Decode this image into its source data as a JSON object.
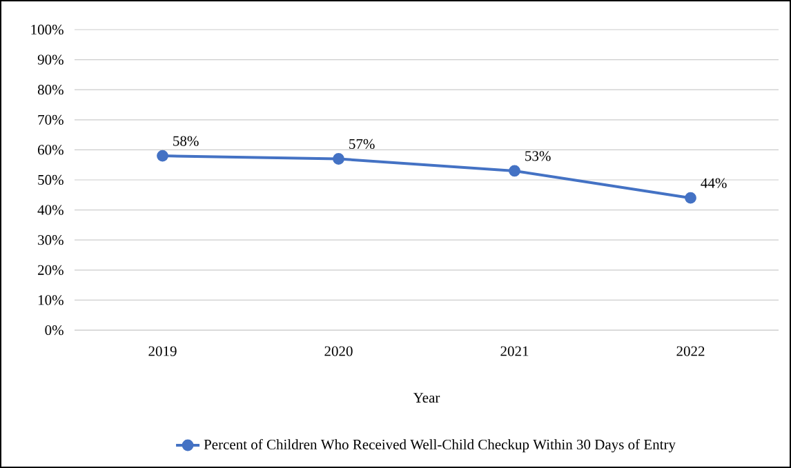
{
  "chart_data": {
    "type": "line",
    "xlabel": "Year",
    "categories": [
      "2019",
      "2020",
      "2021",
      "2022"
    ],
    "series": [
      {
        "name": "Percent of Children Who Received Well-Child Checkup Within 30 Days of Entry",
        "color": "#4472c4",
        "values": [
          58,
          57,
          53,
          44
        ],
        "value_labels": [
          "58%",
          "57%",
          "53%",
          "44%"
        ]
      }
    ],
    "ylim": [
      0,
      100
    ],
    "yticks": [
      {
        "value": 0,
        "label": "0%"
      },
      {
        "value": 10,
        "label": "10%"
      },
      {
        "value": 20,
        "label": "20%"
      },
      {
        "value": 30,
        "label": "30%"
      },
      {
        "value": 40,
        "label": "40%"
      },
      {
        "value": 50,
        "label": "50%"
      },
      {
        "value": 60,
        "label": "60%"
      },
      {
        "value": 70,
        "label": "70%"
      },
      {
        "value": 80,
        "label": "80%"
      },
      {
        "value": 90,
        "label": "90%"
      },
      {
        "value": 100,
        "label": "100%"
      }
    ],
    "grid": "y",
    "legend": "bottom",
    "marker": "circle",
    "line_style": "solid"
  }
}
